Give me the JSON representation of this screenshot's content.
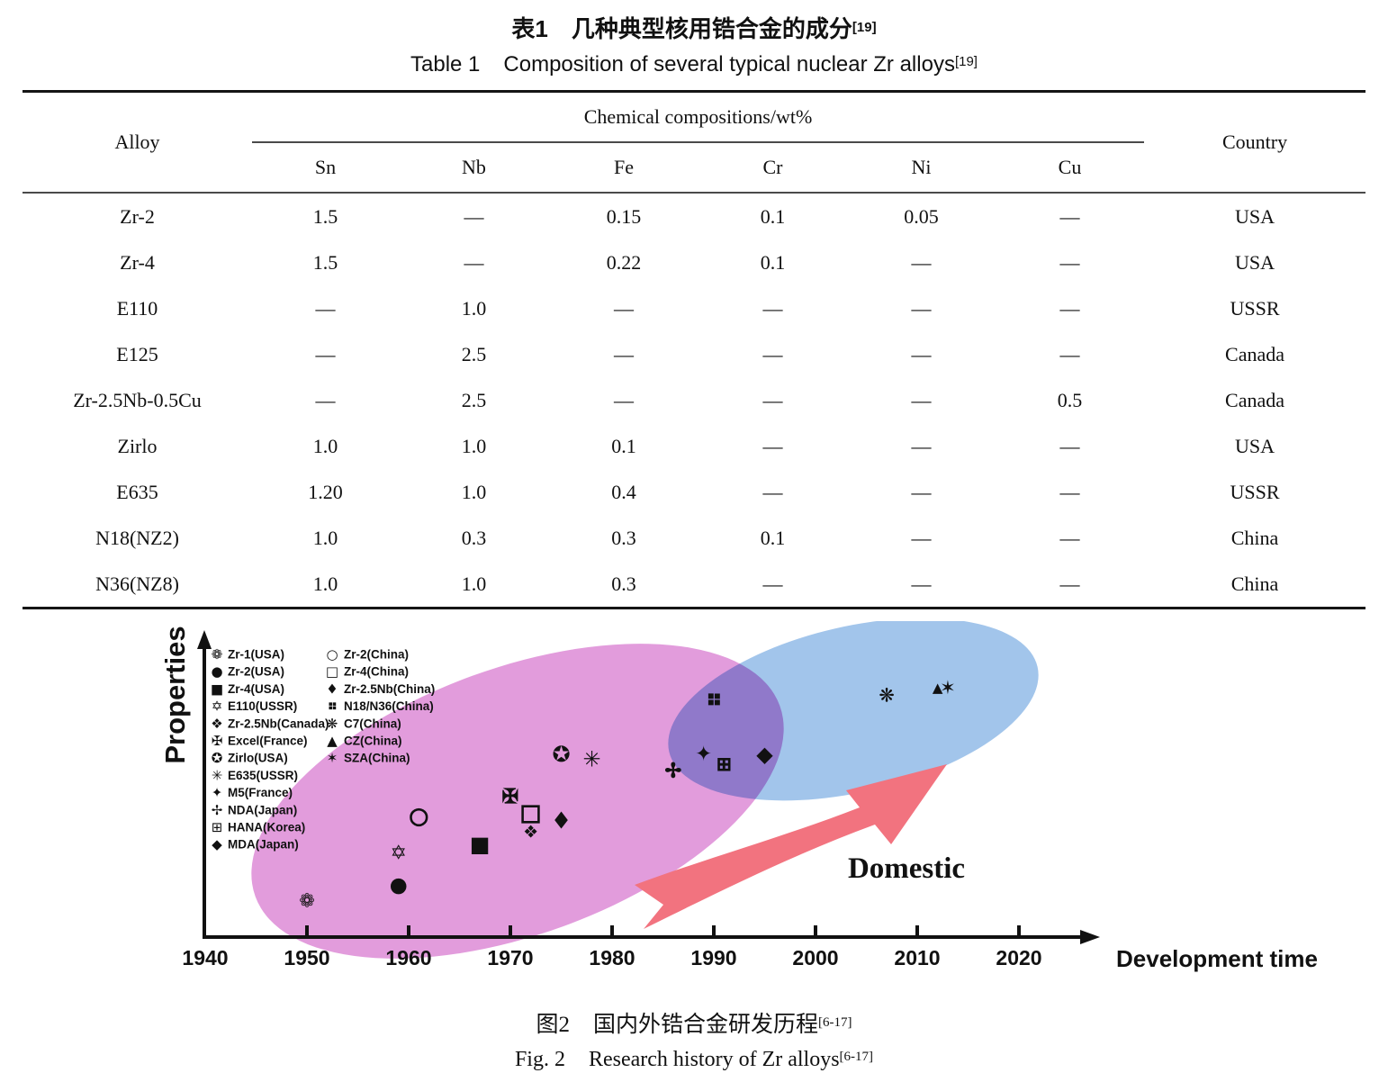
{
  "table": {
    "title_zh": {
      "label": "表1",
      "text": "几种典型核用锆合金的成分",
      "ref": "[19]"
    },
    "title_en": {
      "label": "Table 1",
      "text": "Composition of several typical nuclear Zr alloys",
      "ref": "[19]"
    },
    "header": {
      "alloy": "Alloy",
      "group": "Chemical compositions/wt%",
      "elements": [
        "Sn",
        "Nb",
        "Fe",
        "Cr",
        "Ni",
        "Cu"
      ],
      "country": "Country"
    },
    "rows": [
      {
        "alloy": "Zr-2",
        "cells": [
          "1.5",
          "—",
          "0.15",
          "0.1",
          "0.05",
          "—"
        ],
        "country": "USA"
      },
      {
        "alloy": "Zr-4",
        "cells": [
          "1.5",
          "—",
          "0.22",
          "0.1",
          "—",
          "—"
        ],
        "country": "USA"
      },
      {
        "alloy": "E110",
        "cells": [
          "—",
          "1.0",
          "—",
          "—",
          "—",
          "—"
        ],
        "country": "USSR"
      },
      {
        "alloy": "E125",
        "cells": [
          "—",
          "2.5",
          "—",
          "—",
          "—",
          "—"
        ],
        "country": "Canada"
      },
      {
        "alloy": "Zr-2.5Nb-0.5Cu",
        "cells": [
          "—",
          "2.5",
          "—",
          "—",
          "—",
          "0.5"
        ],
        "country": "Canada"
      },
      {
        "alloy": "Zirlo",
        "cells": [
          "1.0",
          "1.0",
          "0.1",
          "—",
          "—",
          "—"
        ],
        "country": "USA"
      },
      {
        "alloy": "E635",
        "cells": [
          "1.20",
          "1.0",
          "0.4",
          "—",
          "—",
          "—"
        ],
        "country": "USSR"
      },
      {
        "alloy": "N18(NZ2)",
        "cells": [
          "1.0",
          "0.3",
          "0.3",
          "0.1",
          "—",
          "—"
        ],
        "country": "China"
      },
      {
        "alloy": "N36(NZ8)",
        "cells": [
          "1.0",
          "1.0",
          "0.3",
          "—",
          "—",
          "—"
        ],
        "country": "China"
      }
    ]
  },
  "figure": {
    "ylabel": "Properties",
    "xlabel": "Development time",
    "annotation": "Domestic",
    "caption_zh": {
      "label": "图2",
      "text": "国内外锆合金研发历程",
      "ref": "[6-17]"
    },
    "caption_en": {
      "label": "Fig. 2",
      "text": "Research history of Zr alloys",
      "ref": "[6-17]"
    },
    "colors": {
      "foreign_ellipse": "#e29cdc",
      "domestic_ellipse": "#a2c5eb",
      "arrow": "#f2737f",
      "symbol": "#111111"
    },
    "legend": {
      "col1": [
        {
          "symbol": "❁",
          "label": "Zr-1(USA)"
        },
        {
          "symbol": "●",
          "label": "Zr-2(USA)"
        },
        {
          "symbol": "■",
          "label": "Zr-4(USA)"
        },
        {
          "symbol": "✡",
          "label": "E110(USSR)"
        },
        {
          "symbol": "❖",
          "label": "Zr-2.5Nb(Canada)"
        },
        {
          "symbol": "✠",
          "label": "Excel(France)"
        },
        {
          "symbol": "✪",
          "label": "Zirlo(USA)"
        },
        {
          "symbol": "✳",
          "label": "E635(USSR)"
        },
        {
          "symbol": "✦",
          "label": "M5(France)"
        },
        {
          "symbol": "✢",
          "label": "NDA(Japan)"
        },
        {
          "symbol": "⊞",
          "label": "HANA(Korea)"
        },
        {
          "symbol": "◆",
          "label": "MDA(Japan)"
        }
      ],
      "col2": [
        {
          "symbol": "○",
          "label": "Zr-2(China)"
        },
        {
          "symbol": "□",
          "label": "Zr-4(China)"
        },
        {
          "symbol": "♦",
          "label": "Zr-2.5Nb(China)"
        },
        {
          "symbol": "❖",
          "label": "N18/N36(China)",
          "rotate": 45
        },
        {
          "symbol": "❋",
          "label": "C7(China)"
        },
        {
          "symbol": "▲",
          "label": "CZ(China)"
        },
        {
          "symbol": "✶",
          "label": "SZA(China)"
        }
      ]
    }
  },
  "chart_data": {
    "type": "scatter",
    "title": "Research history of Zr alloys",
    "xlabel": "Development time",
    "ylabel": "Properties",
    "x_ticks": [
      1940,
      1950,
      1960,
      1970,
      1980,
      1990,
      2000,
      2010,
      2020
    ],
    "x_range": [
      1940,
      2028
    ],
    "y_axis_ticks": "none (qualitative axis)",
    "grid": false,
    "legend_position": "upper-left inside plot",
    "regions": [
      {
        "label": "foreign-alloys-ellipse",
        "color": "#e29cdc"
      },
      {
        "label": "domestic-alloys-ellipse",
        "color": "#a2c5eb",
        "annotation": "Domestic"
      }
    ],
    "points": [
      {
        "label": "Zr-1(USA)",
        "symbol": "❁",
        "year": 1950,
        "property_level": 12,
        "size": 21
      },
      {
        "label": "Zr-2(USA)",
        "symbol": "●",
        "year": 1959,
        "property_level": 17,
        "size": 23
      },
      {
        "label": "E110(USSR)",
        "symbol": "✡",
        "year": 1959,
        "property_level": 27.5,
        "size": 22
      },
      {
        "label": "Zr-2(China)",
        "symbol": "○",
        "year": 1961,
        "property_level": 40,
        "size": 25,
        "heavy": true
      },
      {
        "label": "Zr-4(USA)",
        "symbol": "■",
        "year": 1967,
        "property_level": 30.5,
        "size": 24
      },
      {
        "label": "Excel(France)",
        "symbol": "✠",
        "year": 1970,
        "property_level": 46,
        "size": 22,
        "heavy": true
      },
      {
        "label": "Zr-4(China)",
        "symbol": "□",
        "year": 1972,
        "property_level": 41,
        "size": 25,
        "heavy": true
      },
      {
        "label": "Zr-2.5Nb(Canada)",
        "symbol": "❖",
        "year": 1972,
        "property_level": 34.5,
        "size": 19
      },
      {
        "label": "Zr-2.5Nb(China)",
        "symbol": "♦",
        "year": 1975,
        "property_level": 38,
        "size": 26
      },
      {
        "label": "Zirlo(USA)",
        "symbol": "✪",
        "year": 1975,
        "property_level": 60,
        "size": 24
      },
      {
        "label": "E635(USSR)",
        "symbol": "✳",
        "year": 1978,
        "property_level": 58.5,
        "size": 24
      },
      {
        "label": "NDA(Japan)",
        "symbol": "✢",
        "year": 1986,
        "property_level": 54.5,
        "size": 22,
        "heavy": true
      },
      {
        "label": "M5(France)",
        "symbol": "✦",
        "year": 1989,
        "property_level": 60,
        "size": 23
      },
      {
        "label": "HANA(Korea)",
        "symbol": "⊞",
        "year": 1991,
        "property_level": 57,
        "size": 20,
        "heavy": true
      },
      {
        "label": "MDA(Japan)",
        "symbol": "◆",
        "year": 1995,
        "property_level": 60,
        "size": 24
      },
      {
        "label": "N18/N36(China)",
        "symbol": "❖",
        "year": 1990,
        "property_level": 78,
        "size": 25,
        "rotate": 45
      },
      {
        "label": "C7(China)",
        "symbol": "❋",
        "year": 2007,
        "property_level": 79.5,
        "size": 21
      },
      {
        "label": "CZ(China)",
        "symbol": "▲",
        "year": 2012,
        "property_level": 82,
        "size": 15
      },
      {
        "label": "SZA(China)",
        "symbol": "✶",
        "year": 2013,
        "property_level": 82,
        "size": 21
      }
    ]
  }
}
